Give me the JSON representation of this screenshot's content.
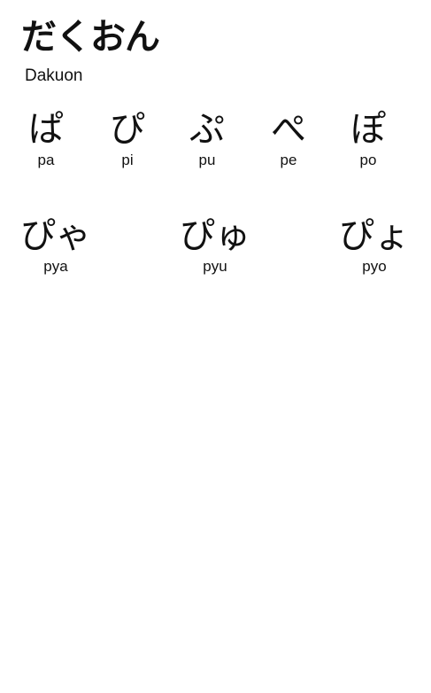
{
  "header": {
    "title": "だくおん",
    "subtitle": "Dakuon"
  },
  "row1": [
    {
      "kana": "ぱ",
      "romaji": "pa"
    },
    {
      "kana": "ぴ",
      "romaji": "pi"
    },
    {
      "kana": "ぷ",
      "romaji": "pu"
    },
    {
      "kana": "ぺ",
      "romaji": "pe"
    },
    {
      "kana": "ぽ",
      "romaji": "po"
    }
  ],
  "row2": [
    {
      "kana": "ぴゃ",
      "romaji": "pya"
    },
    {
      "kana": "ぴゅ",
      "romaji": "pyu"
    },
    {
      "kana": "ぴょ",
      "romaji": "pyo"
    }
  ]
}
